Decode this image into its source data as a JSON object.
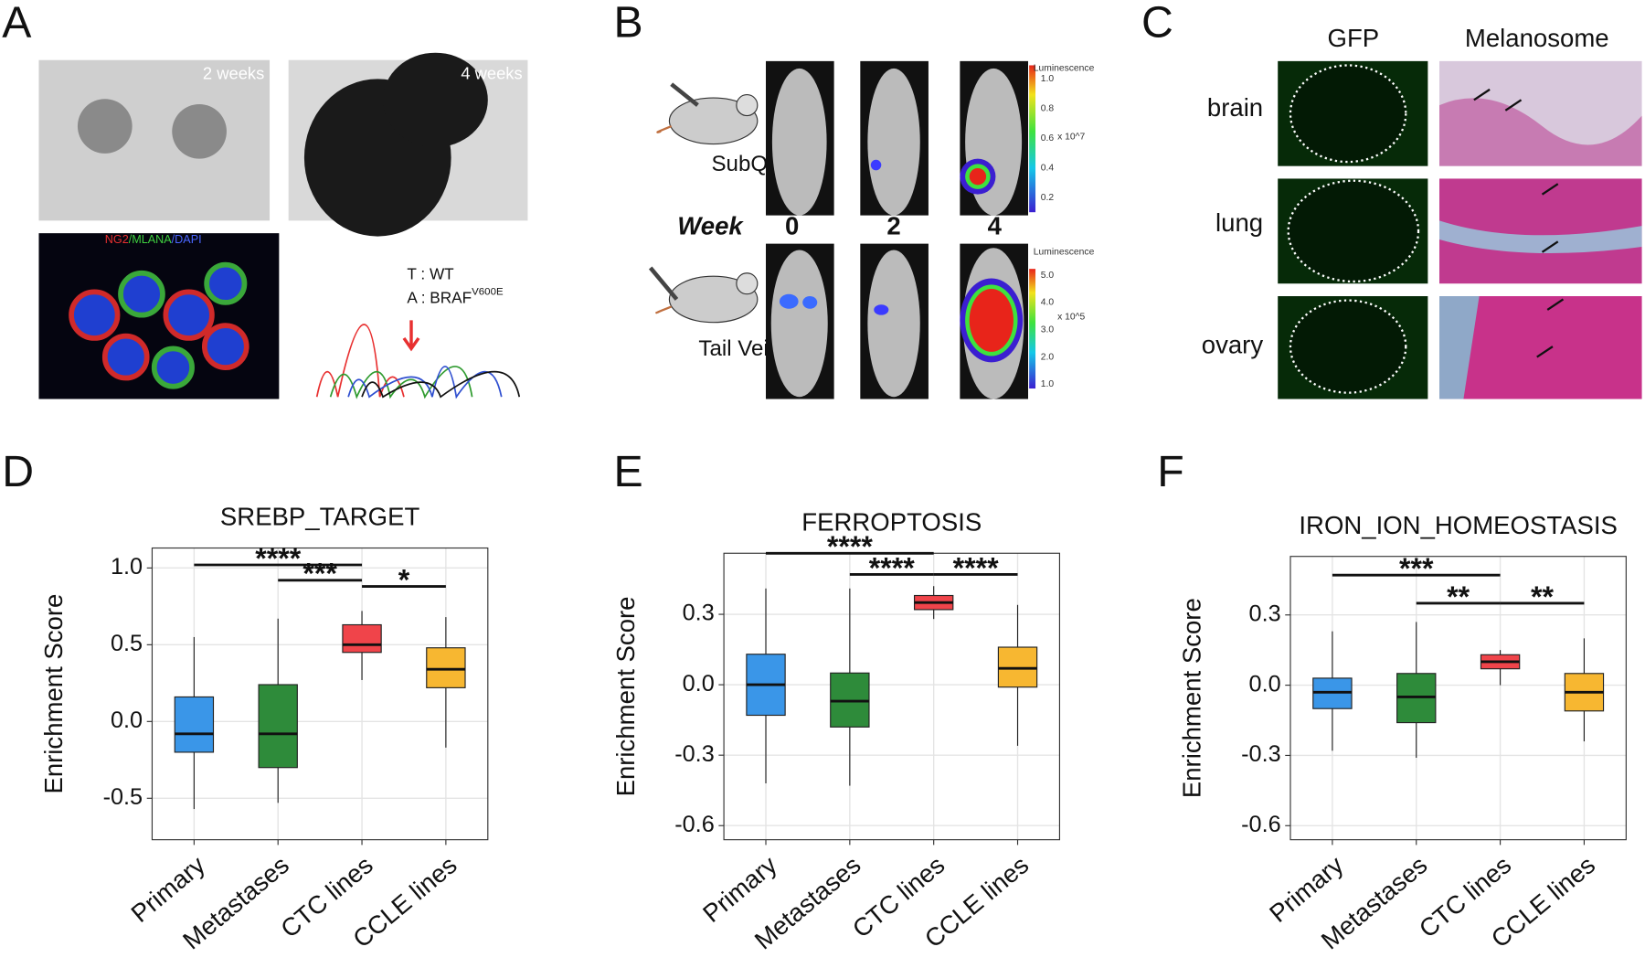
{
  "panels": {
    "a": "A",
    "b": "B",
    "c": "C",
    "d": "D",
    "e": "E",
    "f": "F"
  },
  "panel_a": {
    "week2": "2 weeks",
    "week4": "4 weeks",
    "stain": [
      "NG2",
      "/MLANA",
      "/DAPI"
    ],
    "allele_t": "T : WT",
    "allele_a": "A : BRAF",
    "allele_a_sup": "V600E"
  },
  "panel_b": {
    "subq": "SubQ",
    "tail": "Tail Vein",
    "week": "Week",
    "weeks": [
      "0",
      "2",
      "4"
    ],
    "scale_title": "Luminescence",
    "scale_top": [
      "1.0",
      "0.8",
      "0.6",
      "0.4",
      "0.2"
    ],
    "scale_top_unit": "x 10^7",
    "scale_bottom": [
      "5.0",
      "4.0",
      "3.0",
      "2.0",
      "1.0"
    ],
    "scale_bottom_unit": "x 10^5"
  },
  "panel_c": {
    "gfp": "GFP",
    "melanosome": "Melanosome",
    "organs": [
      "brain",
      "lung",
      "ovary"
    ]
  },
  "chart_data": [
    {
      "type": "box",
      "title": "SREBP_TARGET",
      "y_label": "Enrichment Score",
      "categories": [
        "Primary",
        "Metastases",
        "CTC lines",
        "CCLE lines"
      ],
      "colors": [
        "#3a96e8",
        "#2e8b3a",
        "#f0444a",
        "#f7b731"
      ],
      "boxes": [
        {
          "whisker_low": -0.57,
          "q1": -0.2,
          "median": -0.08,
          "q3": 0.16,
          "whisker_high": 0.55
        },
        {
          "whisker_low": -0.53,
          "q1": -0.3,
          "median": -0.08,
          "q3": 0.24,
          "whisker_high": 0.67
        },
        {
          "whisker_low": 0.27,
          "q1": 0.45,
          "median": 0.5,
          "q3": 0.63,
          "whisker_high": 0.72
        },
        {
          "whisker_low": -0.17,
          "q1": 0.22,
          "median": 0.34,
          "q3": 0.48,
          "whisker_high": 0.68
        }
      ],
      "significance": [
        {
          "from": "Primary",
          "to": "CTC lines",
          "label": "****",
          "y": 1.02
        },
        {
          "from": "Metastases",
          "to": "CTC lines",
          "label": "***",
          "y": 0.92
        },
        {
          "from": "CTC lines",
          "to": "CCLE lines",
          "label": "*",
          "y": 0.88
        }
      ],
      "ylim": [
        -0.77,
        1.13
      ],
      "yticks": [
        -0.5,
        {
          "value": 0,
          "label": "0.0"
        },
        0.5,
        {
          "value": 1,
          "label": "1.0"
        }
      ],
      "grid": true
    },
    {
      "type": "box",
      "title": "FERROPTOSIS",
      "y_label": "Enrichment Score",
      "categories": [
        "Primary",
        "Metastases",
        "CTC lines",
        "CCLE lines"
      ],
      "colors": [
        "#3a96e8",
        "#2e8b3a",
        "#f0444a",
        "#f7b731"
      ],
      "boxes": [
        {
          "whisker_low": -0.42,
          "q1": -0.13,
          "median": 0.0,
          "q3": 0.13,
          "whisker_high": 0.41
        },
        {
          "whisker_low": -0.43,
          "q1": -0.18,
          "median": -0.07,
          "q3": 0.05,
          "whisker_high": 0.41
        },
        {
          "whisker_low": 0.28,
          "q1": 0.32,
          "median": 0.35,
          "q3": 0.38,
          "whisker_high": 0.42
        },
        {
          "whisker_low": -0.26,
          "q1": -0.01,
          "median": 0.07,
          "q3": 0.16,
          "whisker_high": 0.34
        }
      ],
      "significance": [
        {
          "from": "Primary",
          "to": "CTC lines",
          "label": "****",
          "y": 0.56
        },
        {
          "from": "Metastases",
          "to": "CTC lines",
          "label": "****",
          "y": 0.47
        },
        {
          "from": "CTC lines",
          "to": "CCLE lines",
          "label": "****",
          "y": 0.47
        }
      ],
      "ylim": [
        -0.66,
        0.56
      ],
      "yticks": [
        -0.6,
        -0.3,
        {
          "value": 0,
          "label": "0.0"
        },
        0.3
      ],
      "grid": true
    },
    {
      "type": "box",
      "title": "IRON_ION_HOMEOSTASIS",
      "y_label": "Enrichment Score",
      "categories": [
        "Primary",
        "Metastases",
        "CTC lines",
        "CCLE lines"
      ],
      "colors": [
        "#3a96e8",
        "#2e8b3a",
        "#f0444a",
        "#f7b731"
      ],
      "boxes": [
        {
          "whisker_low": -0.28,
          "q1": -0.1,
          "median": -0.03,
          "q3": 0.03,
          "whisker_high": 0.23
        },
        {
          "whisker_low": -0.31,
          "q1": -0.16,
          "median": -0.05,
          "q3": 0.05,
          "whisker_high": 0.27
        },
        {
          "whisker_low": 0.0,
          "q1": 0.07,
          "median": 0.1,
          "q3": 0.13,
          "whisker_high": 0.15
        },
        {
          "whisker_low": -0.24,
          "q1": -0.11,
          "median": -0.03,
          "q3": 0.05,
          "whisker_high": 0.2
        }
      ],
      "significance": [
        {
          "from": "Primary",
          "to": "CTC lines",
          "label": "***",
          "y": 0.47
        },
        {
          "from": "Metastases",
          "to": "CTC lines",
          "label": "**",
          "y": 0.35
        },
        {
          "from": "CTC lines",
          "to": "CCLE lines",
          "label": "**",
          "y": 0.35
        }
      ],
      "ylim": [
        -0.66,
        0.55
      ],
      "yticks": [
        -0.6,
        -0.3,
        {
          "value": 0,
          "label": "0.0"
        },
        0.3
      ],
      "grid": true
    }
  ]
}
